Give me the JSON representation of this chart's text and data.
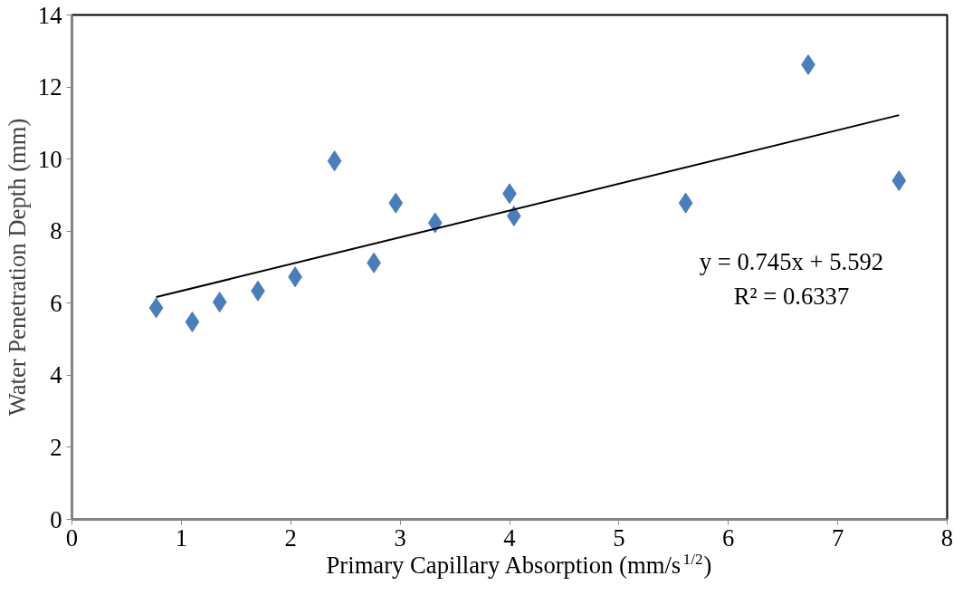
{
  "chart_data": {
    "type": "scatter",
    "xlabel": "Primary Capillary Absorption (mm/s$^{1/2}$)",
    "ylabel": "Water Penetration Depth (mm)",
    "xlim": [
      0,
      8
    ],
    "ylim": [
      0,
      14
    ],
    "xticks": [
      0,
      1,
      2,
      3,
      4,
      5,
      6,
      7,
      8
    ],
    "yticks": [
      0,
      2,
      4,
      6,
      8,
      10,
      12,
      14
    ],
    "grid": false,
    "legend": false,
    "marker": "diamond",
    "series": [
      {
        "color": "#4a7ebb",
        "x": [
          0.77,
          1.1,
          1.35,
          1.7,
          2.04,
          2.4,
          2.76,
          2.96,
          3.32,
          4.0,
          4.04,
          5.61,
          6.73,
          7.56
        ],
        "values": [
          5.87,
          5.48,
          6.03,
          6.34,
          6.73,
          9.95,
          7.12,
          8.78,
          8.23,
          9.04,
          8.42,
          8.78,
          12.62,
          9.4
        ]
      },
      {
        "type": "line",
        "color": "#000000",
        "marker": "none",
        "line_style": "solid",
        "x": [
          0.77,
          7.56
        ],
        "values": [
          6.17,
          11.22
        ]
      }
    ],
    "annotations": [
      "y = 0.745x + 5.592",
      "R² = 0.6337"
    ]
  }
}
